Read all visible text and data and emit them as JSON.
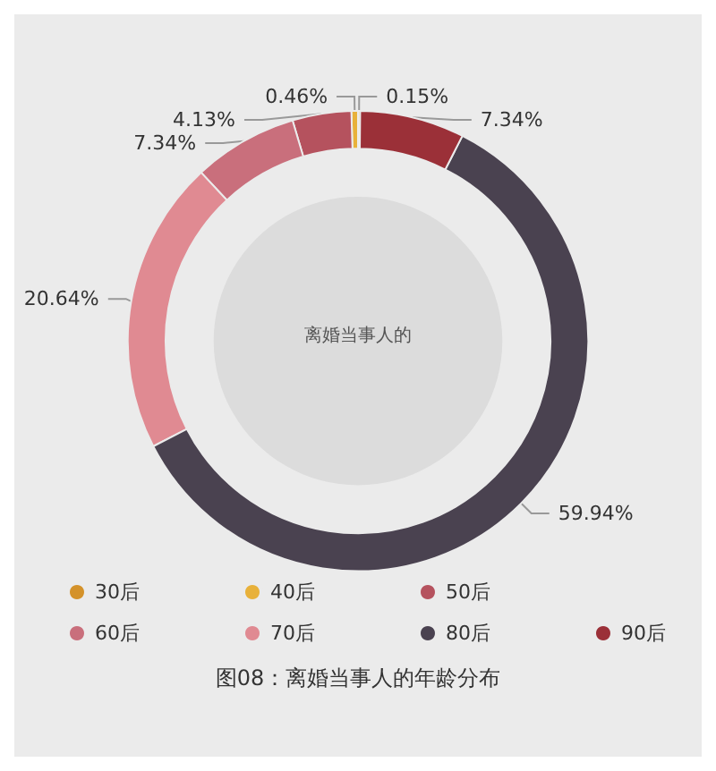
{
  "chart_data": {
    "type": "donut",
    "title": "离婚当事人的",
    "categories": [
      "30后",
      "40后",
      "50后",
      "60后",
      "70后",
      "80后",
      "90后"
    ],
    "values": [
      0.15,
      0.46,
      4.13,
      7.34,
      20.64,
      59.94,
      7.34
    ],
    "colors": [
      "#d4922a",
      "#e8b13a",
      "#b5525e",
      "#c96f7c",
      "#e08a92",
      "#4a4250",
      "#9b3038"
    ],
    "value_labels": [
      "0.15%",
      "0.46%",
      "4.13%",
      "7.34%",
      "20.64%",
      "59.94%",
      "7.34%"
    ],
    "legend": "bottom",
    "marker": "circle",
    "annotations": [
      "图08：离婚当事人的年龄分布"
    ]
  }
}
